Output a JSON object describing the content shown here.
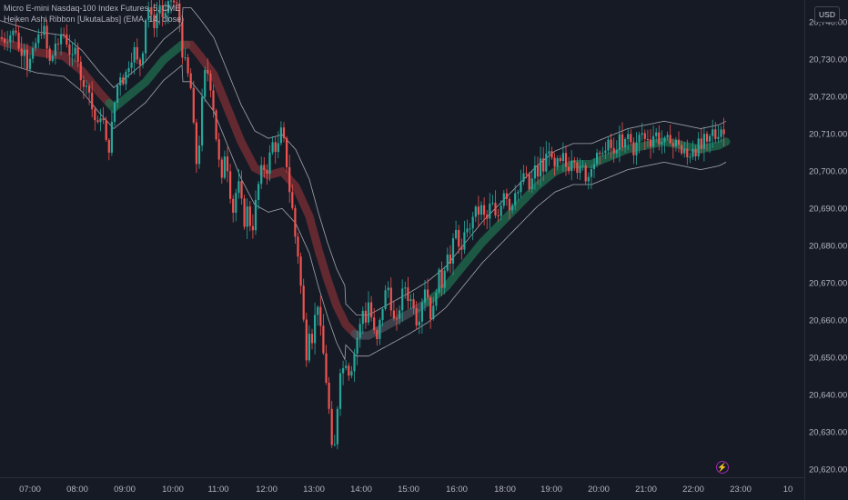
{
  "legend": {
    "symbol_line": "Micro E-mini Nasdaq-100 Index Futures, 5, CME",
    "indicator_line": "Heiken Ashi Ribbon [UkutaLabs] (EMA, 14, close)"
  },
  "currency_button": "USD",
  "price_axis": {
    "ticks": [
      {
        "label": "20,740.00",
        "value": 20740
      },
      {
        "label": "20,730.00",
        "value": 20730
      },
      {
        "label": "20,720.00",
        "value": 20720
      },
      {
        "label": "20,710.00",
        "value": 20710
      },
      {
        "label": "20,700.00",
        "value": 20700
      },
      {
        "label": "20,690.00",
        "value": 20690
      },
      {
        "label": "20,680.00",
        "value": 20680
      },
      {
        "label": "20,670.00",
        "value": 20670
      },
      {
        "label": "20,660.00",
        "value": 20660
      },
      {
        "label": "20,650.00",
        "value": 20650
      },
      {
        "label": "20,640.00",
        "value": 20640
      },
      {
        "label": "20,630.00",
        "value": 20630
      },
      {
        "label": "20,620.00",
        "value": 20620
      }
    ]
  },
  "time_axis": {
    "ticks": [
      "07:00",
      "08:00",
      "09:00",
      "10:00",
      "11:00",
      "12:00",
      "13:00",
      "14:00",
      "15:00",
      "16:00",
      "18:00",
      "19:00",
      "20:00",
      "21:00",
      "22:00",
      "23:00",
      "10"
    ]
  },
  "bolt_icon": "lightning-icon",
  "chart_data": {
    "type": "candlestick",
    "ylim": [
      20618,
      20746
    ],
    "x_time_ticks": [
      "07:00",
      "08:00",
      "09:00",
      "10:00",
      "11:00",
      "12:00",
      "13:00",
      "14:00",
      "15:00",
      "16:00",
      "18:00",
      "19:00",
      "20:00",
      "21:00",
      "22:00",
      "23:00",
      "10"
    ],
    "colors": {
      "up": "#26a69a",
      "down": "#ef5350",
      "ribbon_up": "#1f6e4e",
      "ribbon_down": "#7e2f36",
      "band": "#c7c9d1"
    },
    "price_path": [
      [
        0,
        20736
      ],
      [
        6,
        20735
      ],
      [
        12,
        20737
      ],
      [
        18,
        20738
      ],
      [
        22,
        20730
      ],
      [
        26,
        20735
      ],
      [
        30,
        20728
      ],
      [
        35,
        20731
      ],
      [
        40,
        20735
      ],
      [
        44,
        20737
      ],
      [
        48,
        20739
      ],
      [
        52,
        20732
      ],
      [
        56,
        20728
      ],
      [
        60,
        20735
      ],
      [
        64,
        20733
      ],
      [
        68,
        20738
      ],
      [
        72,
        20736
      ],
      [
        76,
        20732
      ],
      [
        80,
        20730
      ],
      [
        84,
        20734
      ],
      [
        88,
        20726
      ],
      [
        92,
        20722
      ],
      [
        96,
        20725
      ],
      [
        100,
        20718
      ],
      [
        104,
        20714
      ],
      [
        108,
        20712
      ],
      [
        112,
        20717
      ],
      [
        116,
        20708
      ],
      [
        120,
        20706
      ],
      [
        124,
        20715
      ],
      [
        128,
        20722
      ],
      [
        132,
        20726
      ],
      [
        136,
        20724
      ],
      [
        140,
        20728
      ],
      [
        144,
        20730
      ],
      [
        148,
        20733
      ],
      [
        152,
        20728
      ],
      [
        156,
        20730
      ],
      [
        160,
        20741
      ],
      [
        164,
        20745
      ],
      [
        168,
        20738
      ],
      [
        172,
        20742
      ],
      [
        176,
        20745
      ],
      [
        180,
        20740
      ],
      [
        184,
        20744
      ],
      [
        188,
        20746
      ],
      [
        192,
        20745
      ],
      [
        196,
        20744
      ],
      [
        200,
        20732
      ],
      [
        204,
        20729
      ],
      [
        206,
        20725
      ],
      [
        208,
        20728
      ],
      [
        211,
        20718
      ],
      [
        214,
        20708
      ],
      [
        217,
        20699
      ],
      [
        220,
        20712
      ],
      [
        223,
        20722
      ],
      [
        226,
        20728
      ],
      [
        229,
        20726
      ],
      [
        232,
        20722
      ],
      [
        235,
        20716
      ],
      [
        238,
        20708
      ],
      [
        241,
        20702
      ],
      [
        244,
        20697
      ],
      [
        247,
        20705
      ],
      [
        250,
        20701
      ],
      [
        253,
        20694
      ],
      [
        256,
        20689
      ],
      [
        259,
        20694
      ],
      [
        262,
        20697
      ],
      [
        265,
        20693
      ],
      [
        268,
        20685
      ],
      [
        271,
        20691
      ],
      [
        274,
        20687
      ],
      [
        277,
        20683
      ],
      [
        280,
        20690
      ],
      [
        283,
        20695
      ],
      [
        286,
        20699
      ],
      [
        289,
        20703
      ],
      [
        292,
        20698
      ],
      [
        295,
        20703
      ],
      [
        298,
        20706
      ],
      [
        301,
        20709
      ],
      [
        304,
        20704
      ],
      [
        307,
        20709
      ],
      [
        310,
        20712
      ],
      [
        313,
        20706
      ],
      [
        316,
        20700
      ],
      [
        319,
        20693
      ],
      [
        322,
        20689
      ],
      [
        325,
        20681
      ],
      [
        328,
        20677
      ],
      [
        331,
        20668
      ],
      [
        334,
        20659
      ],
      [
        337,
        20650
      ],
      [
        340,
        20658
      ],
      [
        343,
        20655
      ],
      [
        346,
        20661
      ],
      [
        349,
        20665
      ],
      [
        352,
        20658
      ],
      [
        355,
        20652
      ],
      [
        358,
        20645
      ],
      [
        361,
        20638
      ],
      [
        364,
        20628
      ],
      [
        366,
        20621
      ],
      [
        369,
        20630
      ],
      [
        372,
        20641
      ],
      [
        375,
        20650
      ],
      [
        378,
        20646
      ],
      [
        381,
        20650
      ],
      [
        384,
        20645
      ],
      [
        387,
        20648
      ],
      [
        390,
        20652
      ],
      [
        393,
        20656
      ],
      [
        396,
        20659
      ],
      [
        399,
        20663
      ],
      [
        402,
        20660
      ],
      [
        405,
        20665
      ],
      [
        408,
        20661
      ],
      [
        411,
        20657
      ],
      [
        414,
        20654
      ],
      [
        417,
        20659
      ],
      [
        420,
        20663
      ],
      [
        423,
        20667
      ],
      [
        426,
        20670
      ],
      [
        429,
        20665
      ],
      [
        432,
        20661
      ],
      [
        435,
        20658
      ],
      [
        438,
        20662
      ],
      [
        441,
        20666
      ],
      [
        444,
        20670
      ],
      [
        447,
        20668
      ],
      [
        450,
        20664
      ],
      [
        453,
        20667
      ],
      [
        456,
        20662
      ],
      [
        459,
        20658
      ],
      [
        462,
        20663
      ],
      [
        465,
        20667
      ],
      [
        468,
        20670
      ],
      [
        471,
        20665
      ],
      [
        474,
        20660
      ],
      [
        477,
        20664
      ],
      [
        480,
        20670
      ],
      [
        483,
        20673
      ],
      [
        486,
        20669
      ],
      [
        489,
        20675
      ],
      [
        492,
        20679
      ],
      [
        495,
        20675
      ],
      [
        498,
        20681
      ],
      [
        501,
        20684
      ],
      [
        504,
        20681
      ],
      [
        507,
        20678
      ],
      [
        510,
        20682
      ],
      [
        513,
        20686
      ],
      [
        516,
        20683
      ],
      [
        519,
        20688
      ],
      [
        522,
        20690
      ],
      [
        525,
        20688
      ],
      [
        528,
        20691
      ],
      [
        531,
        20689
      ],
      [
        534,
        20686
      ],
      [
        537,
        20689
      ],
      [
        540,
        20693
      ],
      [
        543,
        20689
      ],
      [
        546,
        20686
      ],
      [
        549,
        20690
      ],
      [
        552,
        20693
      ],
      [
        555,
        20696
      ],
      [
        558,
        20692
      ],
      [
        561,
        20689
      ],
      [
        564,
        20693
      ],
      [
        567,
        20696
      ],
      [
        570,
        20694
      ],
      [
        573,
        20697
      ],
      [
        576,
        20700
      ],
      [
        579,
        20698
      ],
      [
        582,
        20695
      ],
      [
        585,
        20698
      ],
      [
        588,
        20701
      ],
      [
        591,
        20699
      ],
      [
        594,
        20703
      ],
      [
        597,
        20700
      ],
      [
        600,
        20704
      ],
      [
        603,
        20707
      ],
      [
        606,
        20703
      ],
      [
        609,
        20700
      ],
      [
        612,
        20703
      ],
      [
        615,
        20701
      ],
      [
        618,
        20705
      ],
      [
        621,
        20702
      ],
      [
        624,
        20700
      ],
      [
        627,
        20703
      ],
      [
        630,
        20705
      ],
      [
        633,
        20702
      ],
      [
        636,
        20699
      ],
      [
        639,
        20702
      ],
      [
        642,
        20700
      ],
      [
        645,
        20697
      ],
      [
        648,
        20700
      ],
      [
        651,
        20703
      ],
      [
        654,
        20702
      ],
      [
        657,
        20705
      ],
      [
        660,
        20703
      ],
      [
        663,
        20707
      ],
      [
        666,
        20705
      ],
      [
        669,
        20708
      ],
      [
        672,
        20706
      ],
      [
        675,
        20704
      ],
      [
        678,
        20707
      ],
      [
        681,
        20709
      ],
      [
        684,
        20706
      ],
      [
        687,
        20708
      ],
      [
        690,
        20710
      ],
      [
        693,
        20708
      ],
      [
        696,
        20705
      ],
      [
        699,
        20707
      ],
      [
        702,
        20709
      ],
      [
        705,
        20711
      ],
      [
        708,
        20708
      ],
      [
        711,
        20710
      ],
      [
        714,
        20707
      ],
      [
        717,
        20709
      ],
      [
        720,
        20711
      ],
      [
        723,
        20709
      ],
      [
        726,
        20707
      ],
      [
        729,
        20709
      ],
      [
        732,
        20707
      ],
      [
        735,
        20710
      ],
      [
        738,
        20708
      ],
      [
        741,
        20706
      ],
      [
        744,
        20709
      ],
      [
        747,
        20707
      ],
      [
        750,
        20704
      ],
      [
        753,
        20706
      ],
      [
        756,
        20703
      ],
      [
        759,
        20705
      ],
      [
        762,
        20707
      ],
      [
        765,
        20705
      ],
      [
        768,
        20708
      ],
      [
        771,
        20706
      ],
      [
        774,
        20709
      ],
      [
        777,
        20707
      ],
      [
        780,
        20709
      ],
      [
        783,
        20711
      ],
      [
        786,
        20709
      ],
      [
        789,
        20710
      ],
      [
        792,
        20712
      ],
      [
        795,
        20710
      ],
      [
        798,
        20710
      ]
    ],
    "ribbon_path": [
      [
        0,
        20735
      ],
      [
        40,
        20732
      ],
      [
        70,
        20731
      ],
      [
        90,
        20727
      ],
      [
        110,
        20721
      ],
      [
        125,
        20717
      ],
      [
        140,
        20720
      ],
      [
        160,
        20724
      ],
      [
        180,
        20730
      ],
      [
        200,
        20734
      ],
      [
        210,
        20734
      ],
      [
        220,
        20731
      ],
      [
        235,
        20726
      ],
      [
        250,
        20717
      ],
      [
        265,
        20708
      ],
      [
        280,
        20701
      ],
      [
        295,
        20699
      ],
      [
        310,
        20700
      ],
      [
        325,
        20696
      ],
      [
        340,
        20688
      ],
      [
        350,
        20679
      ],
      [
        360,
        20671
      ],
      [
        370,
        20664
      ],
      [
        380,
        20659
      ],
      [
        392,
        20656
      ],
      [
        405,
        20656
      ],
      [
        420,
        20658
      ],
      [
        435,
        20660
      ],
      [
        450,
        20662
      ],
      [
        470,
        20665
      ],
      [
        490,
        20669
      ],
      [
        510,
        20675
      ],
      [
        530,
        20681
      ],
      [
        550,
        20686
      ],
      [
        570,
        20691
      ],
      [
        590,
        20696
      ],
      [
        610,
        20700
      ],
      [
        630,
        20702
      ],
      [
        650,
        20702
      ],
      [
        670,
        20704
      ],
      [
        690,
        20706
      ],
      [
        710,
        20707
      ],
      [
        730,
        20708
      ],
      [
        750,
        20707
      ],
      [
        770,
        20706
      ],
      [
        790,
        20707
      ],
      [
        798,
        20708
      ]
    ]
  }
}
